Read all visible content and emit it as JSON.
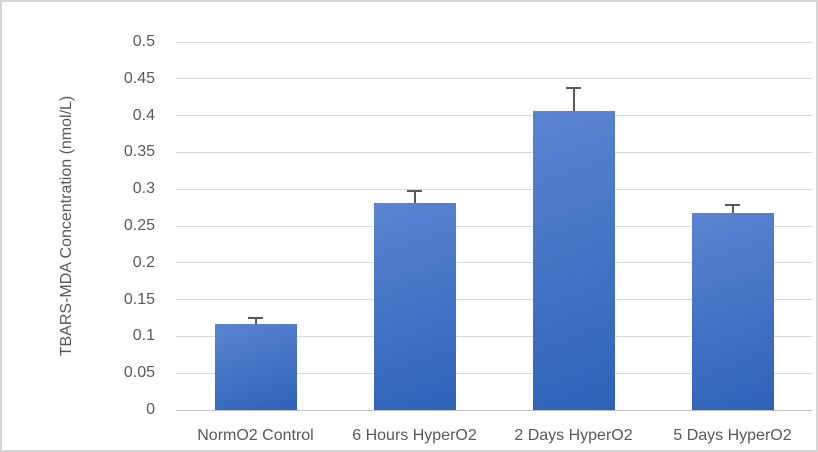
{
  "chart_data": {
    "type": "bar",
    "title": "",
    "xlabel": "",
    "ylabel": "TBARS-MDA Concentration (nmol/L)",
    "categories": [
      "NormO2 Control",
      "6 Hours HyperO2",
      "2 Days HyperO2",
      "5 Days HyperO2"
    ],
    "values": [
      0.117,
      0.281,
      0.406,
      0.268
    ],
    "errors": [
      0.008,
      0.016,
      0.032,
      0.011
    ],
    "ylim": [
      0,
      0.5
    ],
    "ytick_step": 0.05,
    "ytick_labels": [
      "0",
      "0.05",
      "0.1",
      "0.15",
      "0.2",
      "0.25",
      "0.3",
      "0.35",
      "0.4",
      "0.45",
      "0.5"
    ],
    "grid": true,
    "legend_position": "none",
    "colors": {
      "bar_gradient_top": "#5a84d1",
      "bar_gradient_bottom": "#2e62b8",
      "error_bar": "#595959",
      "gridline": "#d9d9d9",
      "axis_line": "#bfbfbf",
      "text": "#595959",
      "border": "#d6d6d6",
      "background": "#ffffff"
    }
  }
}
